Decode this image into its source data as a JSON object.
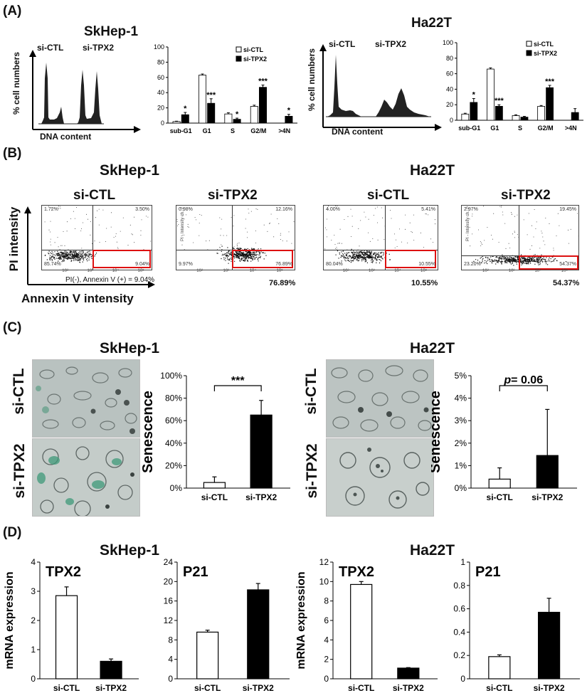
{
  "panels": {
    "a": "(A)",
    "b": "(B)",
    "c": "(C)",
    "d": "(D)"
  },
  "cells": {
    "skhep": "SkHep-1",
    "ha22t": "Ha22T"
  },
  "labels": {
    "ctl": "si-CTL",
    "tpx": "si-TPX2"
  },
  "panelA": {
    "ylabel": "% cell numbers",
    "xlabel": "DNA content"
  },
  "panelB": {
    "ylabel": "PI intensity",
    "xlabel": "Annexin V intensity",
    "note": "PI(-), Annexin V (+) = 9.04%",
    "channel_label": "PI - Intensity ch. 2",
    "ticks": [
      "10²",
      "10³",
      "10⁴",
      "10⁵"
    ],
    "plots": [
      {
        "ul": "1.72%",
        "ur": "3.50%",
        "ll": "85.74%",
        "lr": "9.04%",
        "below": ""
      },
      {
        "ul": "0.98%",
        "ur": "12.16%",
        "ll": "9.97%",
        "lr": "76.89%",
        "below": "76.89%"
      },
      {
        "ul": "4.00%",
        "ur": "5.41%",
        "ll": "80.04%",
        "lr": "10.55%",
        "below": "10.55%"
      },
      {
        "ul": "2.97%",
        "ur": "19.45%",
        "ll": "23.20%",
        "lr": "54.37%",
        "below": "54.37%"
      }
    ]
  },
  "panelC": {
    "ylabel": "Senescence",
    "skhep_sig": "***",
    "ha22t_p": "p",
    "ha22t_pval": "= 0.06"
  },
  "panelD": {
    "ylabel": "mRNA expression",
    "titles": [
      "TPX2",
      "P21",
      "TPX2",
      "P21"
    ]
  },
  "chart_data": [
    {
      "id": "A-skhep",
      "type": "bar",
      "categories": [
        "sub-G1",
        "G1",
        "S",
        "G2/M",
        ">4N"
      ],
      "series": [
        {
          "name": "si-CTL",
          "values": [
            2,
            63,
            12,
            22,
            0
          ],
          "errors": [
            0.5,
            1.5,
            1.5,
            1.5,
            0
          ]
        },
        {
          "name": "si-TPX2",
          "values": [
            11,
            26,
            5,
            47,
            9
          ],
          "errors": [
            3,
            6,
            1.5,
            3,
            2.5
          ]
        }
      ],
      "significance": [
        "*",
        "***",
        "*",
        "***",
        "*"
      ],
      "ylim": [
        0,
        100
      ],
      "yticks": [
        "0",
        "20",
        "40",
        "60",
        "80",
        "100"
      ],
      "legend": "top-right"
    },
    {
      "id": "A-ha22t",
      "type": "bar",
      "categories": [
        "sub-G1",
        "G1",
        "S",
        "G2/M",
        ">4N"
      ],
      "series": [
        {
          "name": "si-CTL",
          "values": [
            8,
            66,
            6,
            18,
            0
          ],
          "errors": [
            1,
            1.5,
            1,
            1,
            0
          ]
        },
        {
          "name": "si-TPX2",
          "values": [
            23,
            18,
            4,
            42,
            10
          ],
          "errors": [
            5,
            2,
            1,
            3,
            5
          ]
        }
      ],
      "significance": [
        "*",
        "***",
        "",
        "***",
        ""
      ],
      "ylim": [
        0,
        100
      ],
      "yticks": [
        "0",
        "20",
        "40",
        "60",
        "80",
        "100"
      ],
      "legend": "top-right"
    },
    {
      "id": "C-skhep",
      "type": "bar",
      "categories": [
        "si-CTL",
        "si-TPX2"
      ],
      "values": [
        5,
        65
      ],
      "errors": [
        5,
        13
      ],
      "ylabel": "Senescence",
      "ylim": [
        0,
        100
      ],
      "yticks": [
        "0%",
        "20%",
        "40%",
        "60%",
        "80%",
        "100%"
      ]
    },
    {
      "id": "C-ha22t",
      "type": "bar",
      "categories": [
        "si-CTL",
        "si-TPX2"
      ],
      "values": [
        0.4,
        1.45
      ],
      "errors": [
        0.5,
        2.05
      ],
      "ylabel": "Senescence",
      "ylim": [
        0,
        5
      ],
      "yticks": [
        "0%",
        "1%",
        "2%",
        "3%",
        "4%",
        "5%"
      ]
    },
    {
      "id": "D-skhep-TPX2",
      "type": "bar",
      "title": "TPX2",
      "categories": [
        "si-CTL",
        "si-TPX2"
      ],
      "values": [
        2.85,
        0.6
      ],
      "errors": [
        0.3,
        0.08
      ],
      "ylabel": "mRNA expression",
      "ylim": [
        0,
        4
      ],
      "yticks": [
        "0",
        "1",
        "2",
        "3",
        "4"
      ]
    },
    {
      "id": "D-skhep-P21",
      "type": "bar",
      "title": "P21",
      "categories": [
        "si-CTL",
        "si-TPX2"
      ],
      "values": [
        9.6,
        18.3
      ],
      "errors": [
        0.4,
        1.3
      ],
      "ylim": [
        0,
        24
      ],
      "yticks": [
        "0",
        "4",
        "8",
        "12",
        "16",
        "20",
        "24"
      ]
    },
    {
      "id": "D-ha22t-TPX2",
      "type": "bar",
      "title": "TPX2",
      "categories": [
        "si-CTL",
        "si-TPX2"
      ],
      "values": [
        9.7,
        1.1
      ],
      "errors": [
        0.3,
        0.05
      ],
      "ylabel": "mRNA expression",
      "ylim": [
        0,
        12
      ],
      "yticks": [
        "0",
        "2",
        "4",
        "6",
        "8",
        "10",
        "12"
      ]
    },
    {
      "id": "D-ha22t-P21",
      "type": "bar",
      "title": "P21",
      "categories": [
        "si-CTL",
        "si-TPX2"
      ],
      "values": [
        0.19,
        0.57
      ],
      "errors": [
        0.015,
        0.12
      ],
      "ylim": [
        0,
        1
      ],
      "yticks": [
        "0",
        "0.2",
        "0.4",
        "0.6",
        "0.8",
        "1"
      ]
    }
  ]
}
